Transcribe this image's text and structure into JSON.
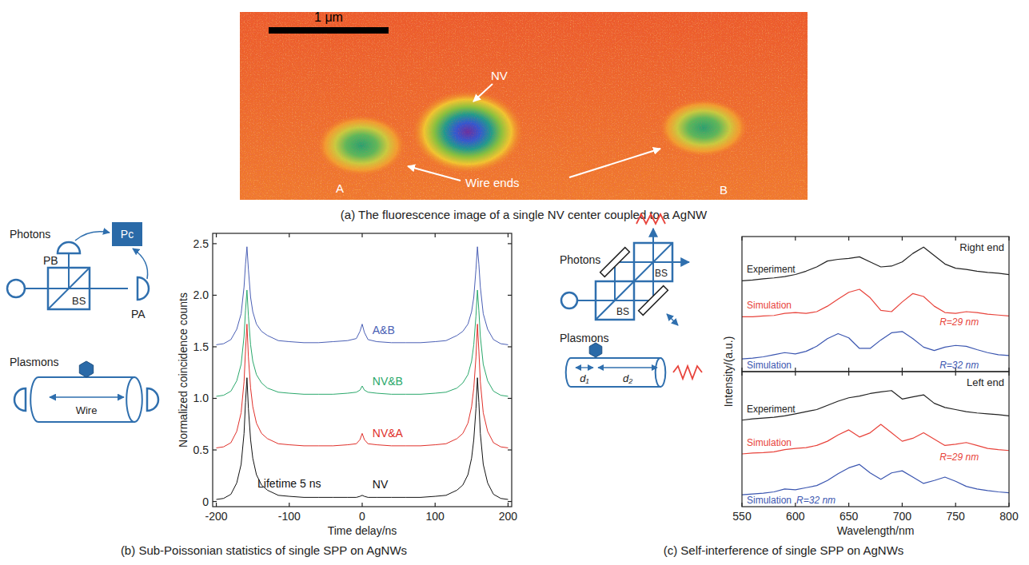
{
  "chart_data": [
    {
      "type": "line",
      "xlabel": "Time delay/ns",
      "ylabel": "Normalized coincidence counts",
      "grid": false,
      "xlim": [
        -205,
        205
      ],
      "ylim": [
        -0.05,
        2.6
      ],
      "xticks": [
        -200,
        -100,
        0,
        100,
        200
      ],
      "yticks": [
        0,
        0.5,
        {
          "value": 1,
          "label": "1.0"
        },
        1.5,
        {
          "value": 2,
          "label": "2.0"
        },
        2.5
      ],
      "annotations": [
        "Lifetime 5 ns"
      ],
      "x": [
        -200,
        -190,
        -180,
        -172,
        -166,
        -162,
        -160,
        -158,
        -156,
        -153,
        -150,
        -145,
        -138,
        -130,
        -115,
        -100,
        -80,
        -60,
        -40,
        -20,
        -8,
        -3,
        0,
        3,
        8,
        20,
        40,
        60,
        80,
        100,
        115,
        130,
        138,
        145,
        150,
        153,
        156,
        158,
        160,
        162,
        166,
        172,
        180,
        190,
        200
      ],
      "series": [
        {
          "name": "A&B",
          "color": "#4a5fb5",
          "values": [
            1.52,
            1.53,
            1.57,
            1.67,
            1.82,
            2.08,
            2.3,
            2.47,
            2.25,
            1.98,
            1.84,
            1.72,
            1.65,
            1.61,
            1.56,
            1.55,
            1.54,
            1.54,
            1.55,
            1.56,
            1.58,
            1.65,
            1.72,
            1.64,
            1.57,
            1.55,
            1.54,
            1.54,
            1.54,
            1.55,
            1.56,
            1.61,
            1.65,
            1.72,
            1.84,
            1.98,
            2.25,
            2.47,
            2.3,
            2.08,
            1.82,
            1.67,
            1.57,
            1.53,
            1.52
          ]
        },
        {
          "name": "NV&B",
          "color": "#2aa86b",
          "values": [
            1.02,
            1.03,
            1.07,
            1.17,
            1.33,
            1.6,
            1.85,
            2.05,
            1.8,
            1.52,
            1.36,
            1.23,
            1.15,
            1.1,
            1.06,
            1.05,
            1.04,
            1.04,
            1.04,
            1.05,
            1.06,
            1.08,
            1.12,
            1.08,
            1.06,
            1.05,
            1.04,
            1.04,
            1.04,
            1.05,
            1.06,
            1.1,
            1.15,
            1.23,
            1.36,
            1.52,
            1.8,
            2.05,
            1.85,
            1.6,
            1.33,
            1.17,
            1.07,
            1.03,
            1.02
          ]
        },
        {
          "name": "NV&A",
          "color": "#e0302a",
          "values": [
            0.52,
            0.53,
            0.57,
            0.68,
            0.86,
            1.16,
            1.46,
            1.72,
            1.4,
            1.1,
            0.92,
            0.76,
            0.66,
            0.61,
            0.56,
            0.55,
            0.54,
            0.54,
            0.54,
            0.55,
            0.56,
            0.6,
            0.66,
            0.6,
            0.56,
            0.55,
            0.54,
            0.54,
            0.54,
            0.55,
            0.56,
            0.61,
            0.66,
            0.76,
            0.92,
            1.1,
            1.4,
            1.72,
            1.46,
            1.16,
            0.86,
            0.68,
            0.57,
            0.53,
            0.52
          ]
        },
        {
          "name": "NV",
          "color": "#111111",
          "values": [
            0.02,
            0.03,
            0.07,
            0.18,
            0.36,
            0.66,
            0.96,
            1.2,
            0.9,
            0.6,
            0.42,
            0.26,
            0.16,
            0.11,
            0.06,
            0.05,
            0.04,
            0.04,
            0.04,
            0.04,
            0.04,
            0.05,
            0.06,
            0.05,
            0.04,
            0.04,
            0.04,
            0.04,
            0.04,
            0.05,
            0.06,
            0.11,
            0.16,
            0.26,
            0.42,
            0.6,
            0.9,
            1.2,
            0.96,
            0.66,
            0.36,
            0.18,
            0.07,
            0.03,
            0.02
          ]
        }
      ]
    },
    {
      "type": "line",
      "ylabel": "Intensity/(a.u.)",
      "grid": false,
      "tick_labels": false,
      "xlim": [
        550,
        800
      ],
      "ylim": [
        0,
        3.2
      ],
      "xticks": [
        550,
        600,
        650,
        700,
        750,
        800
      ],
      "annotations": [
        "Right end"
      ],
      "x": [
        550,
        560,
        570,
        580,
        590,
        600,
        610,
        620,
        630,
        640,
        650,
        660,
        670,
        680,
        690,
        700,
        710,
        720,
        730,
        740,
        750,
        760,
        770,
        780,
        790,
        800
      ],
      "series": [
        {
          "name": "Experiment",
          "color": "#222222",
          "values": [
            2.15,
            2.17,
            2.2,
            2.22,
            2.25,
            2.3,
            2.38,
            2.48,
            2.62,
            2.66,
            2.68,
            2.72,
            2.6,
            2.48,
            2.5,
            2.6,
            2.8,
            2.95,
            2.75,
            2.55,
            2.45,
            2.42,
            2.38,
            2.35,
            2.33,
            2.3
          ]
        },
        {
          "name": "Simulation",
          "color": "#e8433b",
          "annotation": "R=29 nm",
          "values": [
            1.3,
            1.3,
            1.32,
            1.33,
            1.38,
            1.4,
            1.38,
            1.42,
            1.55,
            1.72,
            1.88,
            1.95,
            1.75,
            1.45,
            1.42,
            1.65,
            1.85,
            1.78,
            1.55,
            1.4,
            1.38,
            1.42,
            1.4,
            1.36,
            1.34,
            1.32
          ]
        },
        {
          "name": "Simulation",
          "color": "#3b56b0",
          "annotation": "R=32 nm",
          "values": [
            0.3,
            0.32,
            0.35,
            0.4,
            0.45,
            0.42,
            0.48,
            0.6,
            0.78,
            0.9,
            0.8,
            0.55,
            0.55,
            0.75,
            0.92,
            0.95,
            0.78,
            0.58,
            0.5,
            0.58,
            0.62,
            0.6,
            0.52,
            0.45,
            0.4,
            0.38
          ]
        }
      ]
    },
    {
      "type": "line",
      "xlabel": "Wavelength/nm",
      "grid": false,
      "tick_labels": "x",
      "xlim": [
        550,
        800
      ],
      "ylim": [
        0,
        3.2
      ],
      "xticks": [
        550,
        600,
        650,
        700,
        750,
        800
      ],
      "annotations": [
        "Left end"
      ],
      "x": [
        550,
        560,
        570,
        580,
        590,
        600,
        610,
        620,
        630,
        640,
        650,
        660,
        670,
        680,
        690,
        700,
        710,
        720,
        730,
        740,
        750,
        760,
        770,
        780,
        790,
        800
      ],
      "series": [
        {
          "name": "Experiment",
          "color": "#222222",
          "values": [
            2.05,
            2.08,
            2.1,
            2.12,
            2.15,
            2.2,
            2.25,
            2.3,
            2.4,
            2.5,
            2.58,
            2.62,
            2.68,
            2.72,
            2.75,
            2.55,
            2.6,
            2.65,
            2.45,
            2.35,
            2.3,
            2.25,
            2.22,
            2.2,
            2.18,
            2.15
          ]
        },
        {
          "name": "Simulation",
          "color": "#e8433b",
          "annotation": "R=29 nm",
          "values": [
            1.25,
            1.27,
            1.28,
            1.3,
            1.35,
            1.38,
            1.4,
            1.45,
            1.55,
            1.7,
            1.82,
            1.65,
            1.75,
            1.95,
            1.75,
            1.55,
            1.62,
            1.75,
            1.6,
            1.45,
            1.48,
            1.52,
            1.45,
            1.38,
            1.35,
            1.33
          ]
        },
        {
          "name": "Simulation",
          "color": "#3b56b0",
          "annotation": "R=32 nm",
          "values": [
            0.28,
            0.3,
            0.32,
            0.35,
            0.42,
            0.4,
            0.45,
            0.5,
            0.62,
            0.78,
            0.92,
            1.0,
            0.8,
            0.65,
            0.8,
            0.85,
            0.7,
            0.55,
            0.62,
            0.7,
            0.6,
            0.48,
            0.42,
            0.38,
            0.35,
            0.33
          ]
        }
      ]
    }
  ],
  "panel_a": {
    "caption": "(a) The fluorescence image of a single NV center coupled to a AgNW",
    "scale_bar": "1 μm",
    "labels": {
      "nv": "NV",
      "wire_ends": "Wire ends",
      "a": "A",
      "b": "B"
    }
  },
  "panel_b": {
    "caption": "(b) Sub-Poissonian statistics of single SPP on AgNWs",
    "diagram": {
      "photons": "Photons",
      "pb": "PB",
      "pc": "Pc",
      "pa": "PA",
      "bs": "BS",
      "plasmons": "Plasmons",
      "wire": "Wire"
    }
  },
  "panel_c": {
    "caption": "(c) Self-interference of single SPP on AgNWs",
    "diagram": {
      "photons": "Photons",
      "bs": [
        "BS",
        "BS"
      ],
      "plasmons": "Plasmons",
      "d1": "d₁",
      "d2": "d₂"
    }
  }
}
